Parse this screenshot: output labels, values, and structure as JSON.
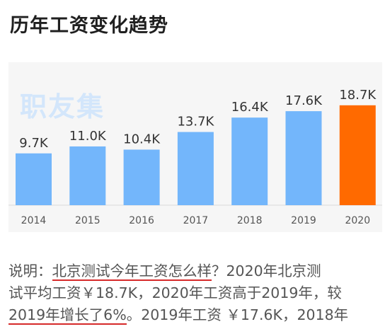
{
  "page": {
    "title": "历年工资变化趋势"
  },
  "watermark": "职友集",
  "colors": {
    "bar": "#73b6fb",
    "highlight": "#ff6a00",
    "axis": "#d9d9d9"
  },
  "chart_data": {
    "type": "bar",
    "categories": [
      "2014",
      "2015",
      "2016",
      "2017",
      "2018",
      "2019",
      "2020"
    ],
    "values": [
      9.7,
      11.0,
      10.4,
      13.7,
      16.4,
      17.6,
      18.7
    ],
    "data_labels": [
      "9.7K",
      "11.0K",
      "10.4K",
      "13.7K",
      "16.4K",
      "17.6K",
      "18.7K"
    ],
    "unit": "K",
    "highlight_index": 6,
    "ylim": [
      0,
      19.5
    ],
    "xlabel": "",
    "ylabel": "",
    "grid": false
  },
  "description": {
    "prefix": "说明：",
    "link1": "北京测试今年工资怎么样",
    "part1": "？2020年北京测",
    "part2": "试平均工资￥18.7K，2020年工资高于2019年，较",
    "link2": "2019年增长了6%",
    "part3": "。2019年工资 ￥17.6K，2018年"
  }
}
